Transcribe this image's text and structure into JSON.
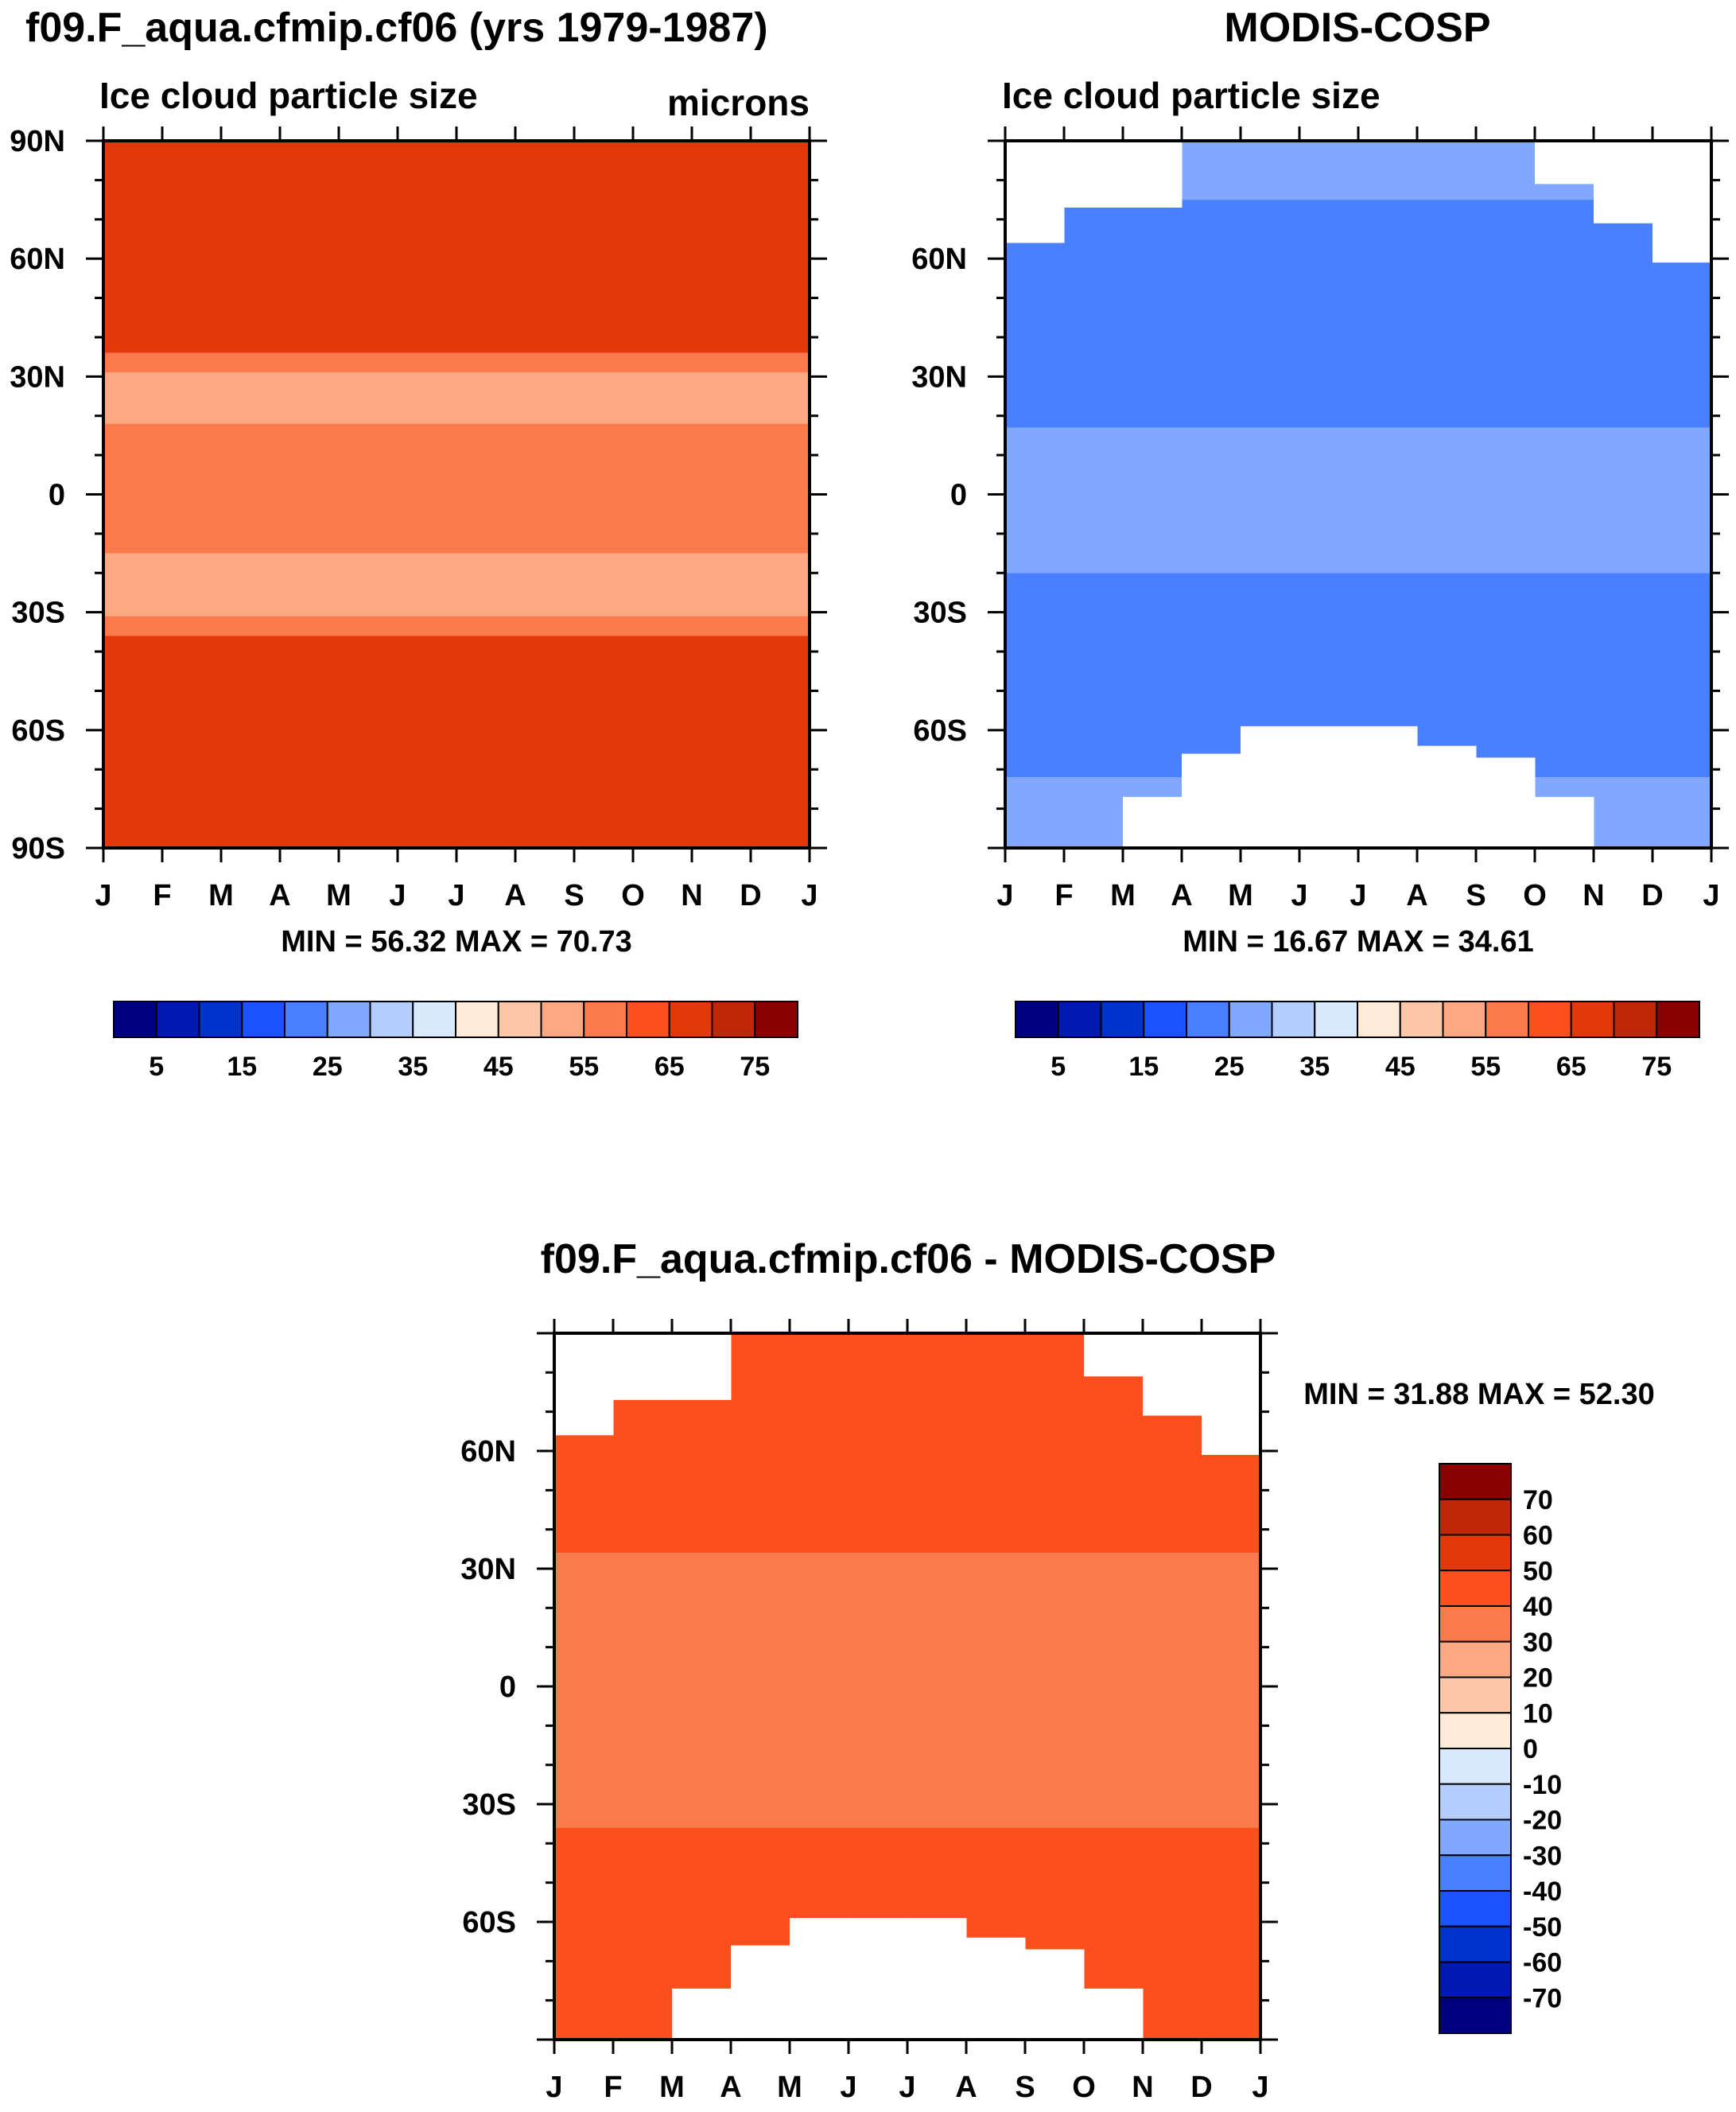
{
  "colors": {
    "scale_abs": [
      "#000080",
      "#0019b3",
      "#0033cc",
      "#1a53ff",
      "#4980ff",
      "#80a8ff",
      "#b3cdff",
      "#d9eaff",
      "#fdebd7",
      "#fcc7a6",
      "#fca882",
      "#fb7a4b",
      "#fc4f1e",
      "#e3380a",
      "#bf2806",
      "#8b0000"
    ],
    "scale_diff": [
      "#8b0000",
      "#bf2806",
      "#e3380a",
      "#fc4f1e",
      "#fb7a4b",
      "#fca882",
      "#fcc7a6",
      "#fdebd7",
      "#d9eaff",
      "#b3cdff",
      "#80a8ff",
      "#4980ff",
      "#1a53ff",
      "#0033cc",
      "#0019b3",
      "#000080"
    ]
  },
  "chart_data": [
    {
      "id": "model",
      "type": "heatmap",
      "title": "f09.F_aqua.cfmip.cf06 (yrs 1979-1987)",
      "subtitle_left": "Ice cloud particle size",
      "subtitle_right": "microns",
      "x_tick_labels": [
        "J",
        "F",
        "M",
        "A",
        "M",
        "J",
        "J",
        "A",
        "S",
        "O",
        "N",
        "D",
        "J"
      ],
      "y_tick_labels": [
        "90N",
        "60N",
        "30N",
        "0",
        "30S",
        "60S",
        "90S"
      ],
      "xlim": [
        0,
        12
      ],
      "ylim": [
        -90,
        90
      ],
      "minmax_text": "MIN =  56.32 MAX =  70.73",
      "colorbar_labels": [
        "5",
        "15",
        "25",
        "35",
        "45",
        "55",
        "65",
        "75"
      ],
      "bands": [
        {
          "lat_from": 90,
          "lat_to": 36,
          "value": 65
        },
        {
          "lat_from": 36,
          "lat_to": 31,
          "value": 55
        },
        {
          "lat_from": 31,
          "lat_to": 18,
          "value": 50
        },
        {
          "lat_from": 18,
          "lat_to": -15,
          "value": 55
        },
        {
          "lat_from": -15,
          "lat_to": -31,
          "value": 50
        },
        {
          "lat_from": -31,
          "lat_to": -36,
          "value": 55
        },
        {
          "lat_from": -36,
          "lat_to": -90,
          "value": 65
        }
      ]
    },
    {
      "id": "obs",
      "type": "heatmap",
      "title": "MODIS-COSP",
      "subtitle_left": "Ice cloud particle size",
      "x_tick_labels": [
        "J",
        "F",
        "M",
        "A",
        "M",
        "J",
        "J",
        "A",
        "S",
        "O",
        "N",
        "D",
        "J"
      ],
      "y_tick_labels": [
        "60N",
        "30N",
        "0",
        "30S",
        "60S"
      ],
      "xlim": [
        0,
        12
      ],
      "ylim": [
        -90,
        90
      ],
      "minmax_text": "MIN =  16.67 MAX =  34.61",
      "colorbar_labels": [
        "5",
        "15",
        "25",
        "35",
        "45",
        "55",
        "65",
        "75"
      ],
      "bands": [
        {
          "lat_from": 90,
          "lat_to": 75,
          "value": 25
        },
        {
          "lat_from": 75,
          "lat_to": 17,
          "value": 20
        },
        {
          "lat_from": 17,
          "lat_to": -20,
          "value": 25
        },
        {
          "lat_from": -20,
          "lat_to": -72,
          "value": 20
        },
        {
          "lat_from": -72,
          "lat_to": -90,
          "value": 25
        }
      ],
      "missing_north_top": [
        64,
        73,
        73,
        90,
        90,
        90,
        90,
        90,
        90,
        79,
        69,
        59,
        59
      ],
      "missing_south_bottom": [
        -90,
        -90,
        -77,
        -66,
        -59,
        -59,
        -59,
        -64,
        -67,
        -77,
        -90,
        -90,
        -90
      ]
    },
    {
      "id": "diff",
      "type": "heatmap",
      "title": "f09.F_aqua.cfmip.cf06 - MODIS-COSP",
      "x_tick_labels": [
        "J",
        "F",
        "M",
        "A",
        "M",
        "J",
        "J",
        "A",
        "S",
        "O",
        "N",
        "D",
        "J"
      ],
      "y_tick_labels": [
        "60N",
        "30N",
        "0",
        "30S",
        "60S"
      ],
      "xlim": [
        0,
        12
      ],
      "ylim": [
        -90,
        90
      ],
      "minmax_text": "MIN =  31.88 MAX =  52.30",
      "colorbar_labels": [
        "70",
        "60",
        "50",
        "40",
        "30",
        "20",
        "10",
        "0",
        "-10",
        "-20",
        "-30",
        "-40",
        "-50",
        "-60",
        "-70"
      ],
      "bands": [
        {
          "lat_from": 90,
          "lat_to": 34,
          "value": 45
        },
        {
          "lat_from": 34,
          "lat_to": -36,
          "value": 35
        },
        {
          "lat_from": -36,
          "lat_to": -90,
          "value": 45
        }
      ],
      "missing_north_top": [
        64,
        73,
        73,
        90,
        90,
        90,
        90,
        90,
        90,
        79,
        69,
        59,
        59
      ],
      "missing_south_bottom": [
        -90,
        -90,
        -77,
        -66,
        -59,
        -59,
        -59,
        -64,
        -67,
        -77,
        -90,
        -90,
        -90
      ]
    }
  ]
}
